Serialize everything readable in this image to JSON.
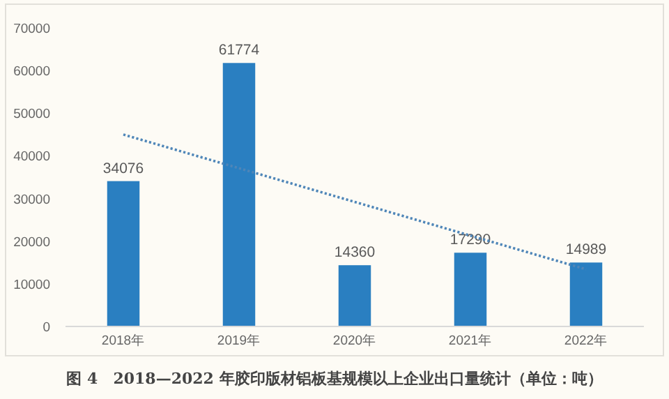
{
  "chart_data": {
    "type": "bar",
    "categories": [
      "2018年",
      "2019年",
      "2020年",
      "2021年",
      "2022年"
    ],
    "series": [
      {
        "color": "#2a7fc1",
        "values": [
          34076,
          61774,
          14360,
          17290,
          14989
        ],
        "value_labels": [
          "34076",
          "61774",
          "14360",
          "17290",
          "14989"
        ]
      },
      {
        "type": "line",
        "color": "#4f86b8",
        "line_style": "dotted",
        "x": [
          "2018年",
          "2022年"
        ],
        "values": [
          45000,
          13400
        ]
      }
    ],
    "ylim": [
      0,
      70000
    ],
    "yticks": [
      0,
      10000,
      20000,
      30000,
      40000,
      50000,
      60000,
      70000
    ],
    "annotations": [
      "图 4　2018—2022 年胶印版材铝板基规模以上企业出口量统计（单位：吨）"
    ]
  }
}
